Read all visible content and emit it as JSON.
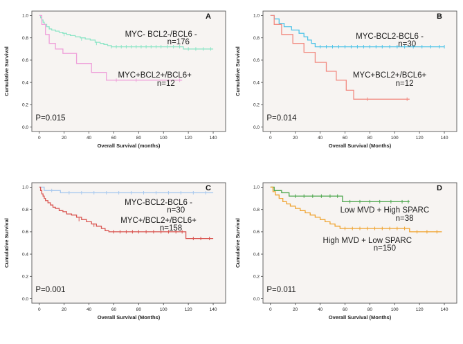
{
  "figure": {
    "background": "#ffffff"
  },
  "chart_data": [
    {
      "type": "line",
      "subtype": "kaplan_meier_step",
      "panel_label": "A",
      "xlabel": "Overall Survival (months)",
      "ylabel": "Cumulative Survival",
      "xlim": [
        -6,
        150
      ],
      "ylim": [
        -0.04,
        1.04
      ],
      "xticks": [
        "0",
        "20",
        "40",
        "60",
        "80",
        "100",
        "120",
        "140"
      ],
      "yticks": [
        "0.0",
        "0.2",
        "0.4",
        "0.6",
        "0.8",
        "1.0"
      ],
      "plot_bg": "#f7f4f2",
      "grid": false,
      "legend": "none (in-plot annotations)",
      "series": [
        {
          "name": "MYC- BCL2-/BCL6 -",
          "n": 176,
          "color": "#8ce5c6",
          "start": 1.0,
          "end": 140,
          "points": [
            [
              1,
              0.98
            ],
            [
              2,
              0.96
            ],
            [
              3,
              0.94
            ],
            [
              4,
              0.92
            ],
            [
              6,
              0.9
            ],
            [
              8,
              0.88
            ],
            [
              10,
              0.87
            ],
            [
              13,
              0.86
            ],
            [
              16,
              0.85
            ],
            [
              19,
              0.84
            ],
            [
              22,
              0.83
            ],
            [
              25,
              0.82
            ],
            [
              29,
              0.81
            ],
            [
              33,
              0.8
            ],
            [
              37,
              0.79
            ],
            [
              41,
              0.78
            ],
            [
              45,
              0.76
            ],
            [
              49,
              0.75
            ],
            [
              52,
              0.74
            ],
            [
              55,
              0.73
            ],
            [
              58,
              0.72
            ],
            [
              116,
              0.7
            ]
          ],
          "censors": [
            [
              20,
              0.83
            ],
            [
              34,
              0.79
            ],
            [
              46,
              0.75
            ],
            [
              58,
              0.72
            ],
            [
              62,
              0.72
            ],
            [
              66,
              0.72
            ],
            [
              70,
              0.72
            ],
            [
              74,
              0.72
            ],
            [
              78,
              0.72
            ],
            [
              82,
              0.72
            ],
            [
              86,
              0.72
            ],
            [
              90,
              0.72
            ],
            [
              94,
              0.72
            ],
            [
              98,
              0.72
            ],
            [
              103,
              0.72
            ],
            [
              108,
              0.72
            ],
            [
              113,
              0.72
            ],
            [
              120,
              0.7
            ],
            [
              126,
              0.7
            ],
            [
              132,
              0.7
            ],
            [
              138,
              0.7
            ]
          ]
        },
        {
          "name": "MYC+BCL2+/BCL6+",
          "n": 12,
          "color": "#efa0da",
          "start": 1.0,
          "end": 115,
          "points": [
            [
              2,
              0.92
            ],
            [
              5,
              0.83
            ],
            [
              8,
              0.75
            ],
            [
              13,
              0.7
            ],
            [
              19,
              0.66
            ],
            [
              30,
              0.57
            ],
            [
              42,
              0.49
            ],
            [
              54,
              0.42
            ]
          ],
          "censors": [
            [
              62,
              0.42
            ],
            [
              78,
              0.42
            ],
            [
              113,
              0.42
            ]
          ]
        }
      ],
      "annotations": [
        {
          "text": "MYC- BCL2-/BCL6 -",
          "t": 98,
          "s": 0.83,
          "anchor": "middle"
        },
        {
          "text": "n=176",
          "t": 112,
          "s": 0.76,
          "anchor": "middle"
        },
        {
          "text": "MYC+BCL2+/BCL6+",
          "t": 93,
          "s": 0.46,
          "anchor": "middle"
        },
        {
          "text": "n=12",
          "t": 102,
          "s": 0.39,
          "anchor": "middle"
        },
        {
          "text": "P=0.015",
          "t": -3,
          "s": 0.08,
          "anchor": "start"
        }
      ]
    },
    {
      "type": "line",
      "subtype": "kaplan_meier_step",
      "panel_label": "B",
      "xlabel": "Overall  Survival (Months)",
      "ylabel": "Cumulative Survival",
      "xlim": [
        -6,
        150
      ],
      "ylim": [
        -0.04,
        1.04
      ],
      "xticks": [
        "0",
        "20",
        "40",
        "60",
        "80",
        "100",
        "120",
        "140"
      ],
      "yticks": [
        "0.0",
        "0.2",
        "0.4",
        "0.6",
        "0.8",
        "1.0"
      ],
      "plot_bg": "#f7f4f2",
      "grid": false,
      "legend": "none (in-plot annotations)",
      "series": [
        {
          "name": "MYC-BCL2-BCL6 -",
          "n": 30,
          "color": "#4fc3e8",
          "start": 1.0,
          "end": 140,
          "points": [
            [
              3,
              0.97
            ],
            [
              7,
              0.93
            ],
            [
              11,
              0.9
            ],
            [
              17,
              0.87
            ],
            [
              23,
              0.84
            ],
            [
              27,
              0.81
            ],
            [
              30,
              0.78
            ],
            [
              33,
              0.75
            ],
            [
              36,
              0.72
            ]
          ],
          "censors": [
            [
              40,
              0.72
            ],
            [
              45,
              0.72
            ],
            [
              50,
              0.72
            ],
            [
              55,
              0.72
            ],
            [
              60,
              0.72
            ],
            [
              65,
              0.72
            ],
            [
              70,
              0.72
            ],
            [
              75,
              0.72
            ],
            [
              80,
              0.72
            ],
            [
              85,
              0.72
            ],
            [
              90,
              0.72
            ],
            [
              96,
              0.72
            ],
            [
              102,
              0.72
            ],
            [
              108,
              0.72
            ],
            [
              115,
              0.72
            ],
            [
              122,
              0.72
            ],
            [
              129,
              0.72
            ],
            [
              136,
              0.72
            ],
            [
              140,
              0.72
            ]
          ]
        },
        {
          "name": "MYC+BCL2+/BCL6+",
          "n": 12,
          "color": "#f28b82",
          "start": 1.0,
          "end": 112,
          "points": [
            [
              3,
              0.92
            ],
            [
              9,
              0.83
            ],
            [
              18,
              0.75
            ],
            [
              27,
              0.67
            ],
            [
              36,
              0.58
            ],
            [
              45,
              0.5
            ],
            [
              53,
              0.42
            ],
            [
              61,
              0.33
            ],
            [
              67,
              0.25
            ]
          ],
          "censors": [
            [
              78,
              0.25
            ],
            [
              110,
              0.25
            ]
          ]
        }
      ],
      "annotations": [
        {
          "text": "MYC-BCL2-BCL6 -",
          "t": 96,
          "s": 0.81,
          "anchor": "middle"
        },
        {
          "text": "n=30",
          "t": 110,
          "s": 0.74,
          "anchor": "middle"
        },
        {
          "text": "MYC+BCL2+/BCL6+",
          "t": 96,
          "s": 0.46,
          "anchor": "middle"
        },
        {
          "text": "n=12",
          "t": 108,
          "s": 0.39,
          "anchor": "middle"
        },
        {
          "text": "P=0.014",
          "t": -3,
          "s": 0.08,
          "anchor": "start"
        }
      ]
    },
    {
      "type": "line",
      "subtype": "kaplan_meier_step",
      "panel_label": "C",
      "xlabel": "Overall Survival (Months)",
      "ylabel": "Cumulative Survival",
      "xlim": [
        -6,
        150
      ],
      "ylim": [
        -0.04,
        1.04
      ],
      "xticks": [
        "0",
        "20",
        "40",
        "60",
        "80",
        "100",
        "120",
        "140"
      ],
      "yticks": [
        "0.0",
        "0.2",
        "0.4",
        "0.6",
        "0.8",
        "1.0"
      ],
      "plot_bg": "#f7f4f2",
      "grid": false,
      "legend": "none (in-plot annotations)",
      "series": [
        {
          "name": "MYC-BCL2-BCL6 -",
          "n": 30,
          "color": "#a9c9ee",
          "start": 1.0,
          "end": 140,
          "points": [
            [
              4,
              0.97
            ],
            [
              17,
              0.95
            ]
          ],
          "censors": [
            [
              10,
              0.97
            ],
            [
              24,
              0.95
            ],
            [
              34,
              0.95
            ],
            [
              44,
              0.95
            ],
            [
              54,
              0.95
            ],
            [
              64,
              0.95
            ],
            [
              74,
              0.95
            ],
            [
              84,
              0.95
            ],
            [
              94,
              0.95
            ],
            [
              104,
              0.95
            ],
            [
              114,
              0.95
            ],
            [
              124,
              0.95
            ],
            [
              134,
              0.95
            ]
          ]
        },
        {
          "name": "MYC+/BCL2+/BCL6+",
          "n": 158,
          "color": "#d9534f",
          "start": 1.0,
          "end": 140,
          "points": [
            [
              1,
              0.97
            ],
            [
              2,
              0.94
            ],
            [
              3,
              0.92
            ],
            [
              4,
              0.9
            ],
            [
              5,
              0.88
            ],
            [
              7,
              0.86
            ],
            [
              9,
              0.84
            ],
            [
              11,
              0.82
            ],
            [
              13,
              0.81
            ],
            [
              16,
              0.79
            ],
            [
              19,
              0.78
            ],
            [
              22,
              0.76
            ],
            [
              26,
              0.75
            ],
            [
              30,
              0.73
            ],
            [
              34,
              0.71
            ],
            [
              38,
              0.69
            ],
            [
              42,
              0.67
            ],
            [
              46,
              0.65
            ],
            [
              50,
              0.63
            ],
            [
              53,
              0.61
            ],
            [
              56,
              0.6
            ],
            [
              118,
              0.54
            ]
          ],
          "censors": [
            [
              32,
              0.71
            ],
            [
              44,
              0.66
            ],
            [
              60,
              0.6
            ],
            [
              65,
              0.6
            ],
            [
              70,
              0.6
            ],
            [
              75,
              0.6
            ],
            [
              80,
              0.6
            ],
            [
              86,
              0.6
            ],
            [
              92,
              0.6
            ],
            [
              98,
              0.6
            ],
            [
              104,
              0.6
            ],
            [
              110,
              0.6
            ],
            [
              115,
              0.6
            ],
            [
              124,
              0.54
            ],
            [
              130,
              0.54
            ],
            [
              137,
              0.54
            ]
          ]
        }
      ],
      "annotations": [
        {
          "text": "MYC-BCL2-BCL6 -",
          "t": 96,
          "s": 0.86,
          "anchor": "middle"
        },
        {
          "text": "n=30",
          "t": 110,
          "s": 0.79,
          "anchor": "middle"
        },
        {
          "text": "MYC+/BCL2+/BCL6+",
          "t": 96,
          "s": 0.7,
          "anchor": "middle"
        },
        {
          "text": "n=158",
          "t": 106,
          "s": 0.63,
          "anchor": "middle"
        },
        {
          "text": "P=0.001",
          "t": -3,
          "s": 0.08,
          "anchor": "start"
        }
      ]
    },
    {
      "type": "line",
      "subtype": "kaplan_meier_step",
      "panel_label": "D",
      "xlabel": "Overall Survival (Months)",
      "ylabel": "Cumulative Survival",
      "xlim": [
        -6,
        150
      ],
      "ylim": [
        -0.04,
        1.04
      ],
      "xticks": [
        "0",
        "20",
        "40",
        "60",
        "80",
        "100",
        "120",
        "140"
      ],
      "yticks": [
        "0.0",
        "0.2",
        "0.4",
        "0.6",
        "0.8",
        "1.0"
      ],
      "plot_bg": "#f7f4f2",
      "grid": false,
      "legend": "none (in-plot annotations)",
      "series": [
        {
          "name": "Low MVD + High SPARC",
          "n": 38,
          "color": "#4ca64c",
          "start": 1.0,
          "end": 112,
          "points": [
            [
              3,
              0.97
            ],
            [
              9,
              0.95
            ],
            [
              15,
              0.92
            ],
            [
              58,
              0.87
            ]
          ],
          "censors": [
            [
              20,
              0.92
            ],
            [
              27,
              0.92
            ],
            [
              34,
              0.92
            ],
            [
              41,
              0.92
            ],
            [
              48,
              0.92
            ],
            [
              54,
              0.92
            ],
            [
              64,
              0.87
            ],
            [
              72,
              0.87
            ],
            [
              80,
              0.87
            ],
            [
              88,
              0.87
            ],
            [
              97,
              0.87
            ],
            [
              106,
              0.87
            ],
            [
              111,
              0.87
            ]
          ]
        },
        {
          "name": "High MVD + Low SPARC",
          "n": 150,
          "color": "#f0a330",
          "start": 1.0,
          "end": 138,
          "points": [
            [
              2,
              0.96
            ],
            [
              4,
              0.93
            ],
            [
              7,
              0.9
            ],
            [
              10,
              0.87
            ],
            [
              13,
              0.85
            ],
            [
              16,
              0.83
            ],
            [
              20,
              0.81
            ],
            [
              24,
              0.79
            ],
            [
              28,
              0.77
            ],
            [
              32,
              0.75
            ],
            [
              36,
              0.73
            ],
            [
              40,
              0.71
            ],
            [
              44,
              0.69
            ],
            [
              48,
              0.67
            ],
            [
              52,
              0.65
            ],
            [
              56,
              0.63
            ],
            [
              112,
              0.6
            ]
          ],
          "censors": [
            [
              60,
              0.63
            ],
            [
              66,
              0.63
            ],
            [
              72,
              0.63
            ],
            [
              78,
              0.63
            ],
            [
              84,
              0.63
            ],
            [
              90,
              0.63
            ],
            [
              96,
              0.63
            ],
            [
              102,
              0.63
            ],
            [
              108,
              0.63
            ],
            [
              118,
              0.6
            ],
            [
              126,
              0.6
            ],
            [
              134,
              0.6
            ]
          ]
        }
      ],
      "annotations": [
        {
          "text": "Low MVD + High SPARC",
          "t": 92,
          "s": 0.79,
          "anchor": "middle"
        },
        {
          "text": "n=38",
          "t": 108,
          "s": 0.72,
          "anchor": "middle"
        },
        {
          "text": "High MVD + Low SPARC",
          "t": 78,
          "s": 0.52,
          "anchor": "middle"
        },
        {
          "text": "n=150",
          "t": 92,
          "s": 0.45,
          "anchor": "middle"
        },
        {
          "text": "P=0.011",
          "t": -3,
          "s": 0.08,
          "anchor": "start"
        }
      ]
    }
  ]
}
